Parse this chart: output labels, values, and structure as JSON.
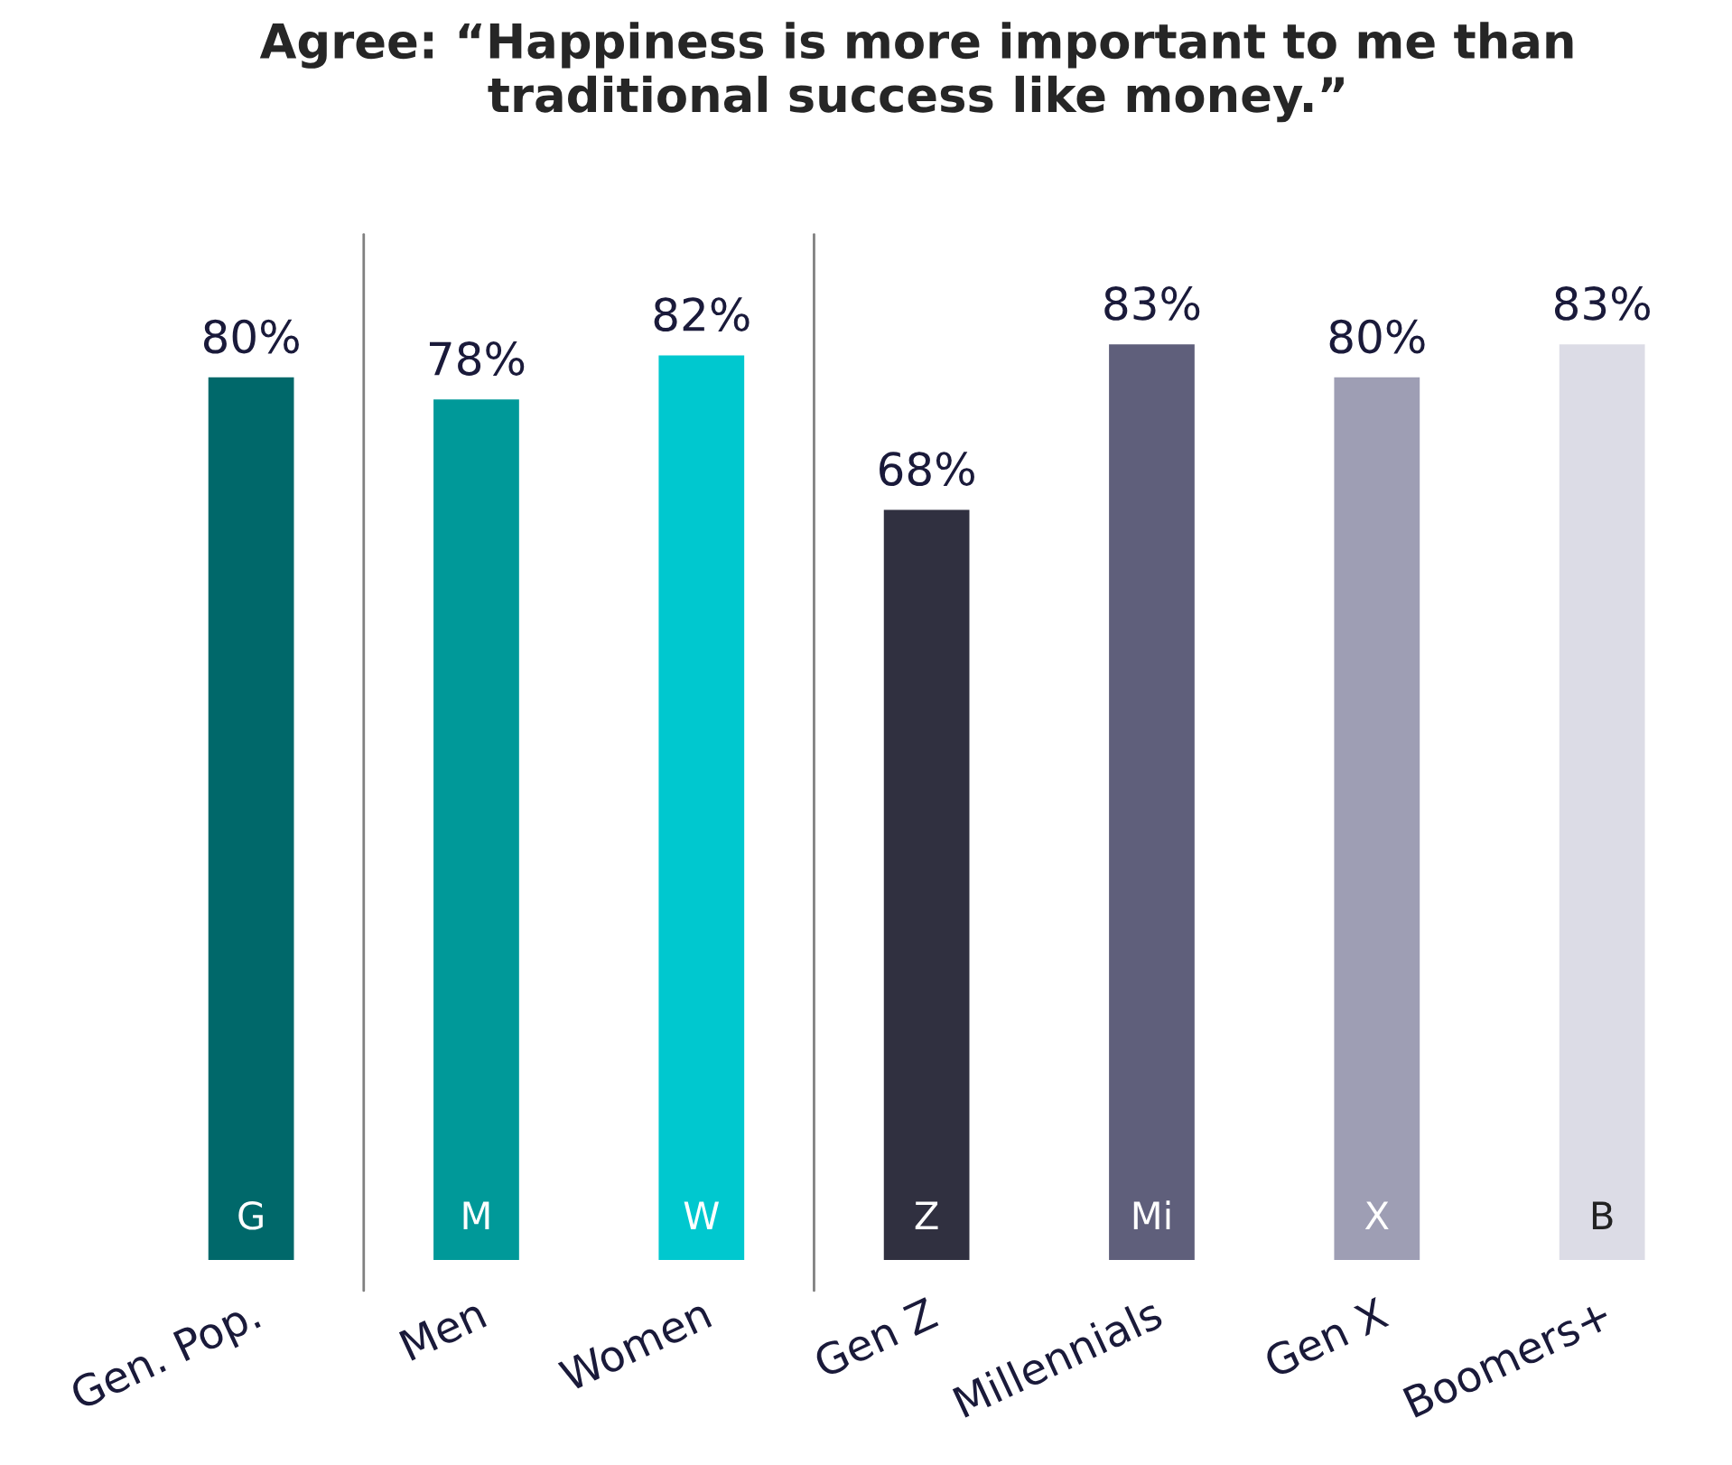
{
  "chart_data": {
    "type": "bar",
    "title": "Agree: “Happiness is more important to me than\ntraditional success like money.”",
    "categories": [
      "Gen. Pop.",
      "Men",
      "Women",
      "Gen Z",
      "Millennials",
      "Gen X",
      "Boomers+"
    ],
    "values": [
      80,
      78,
      82,
      68,
      83,
      80,
      83
    ],
    "colors": [
      "#00686a",
      "#009999",
      "#00c8cf",
      "#303040",
      "#5f5f7b",
      "#9e9eb4",
      "#dcdce6"
    ],
    "value_labels": [
      "80%",
      "78%",
      "82%",
      "68%",
      "83%",
      "80%",
      "83%"
    ],
    "annotations": [
      "G",
      "M",
      "W",
      "Z",
      "Mi",
      "X",
      "B"
    ],
    "grid": false,
    "legend": false
  }
}
